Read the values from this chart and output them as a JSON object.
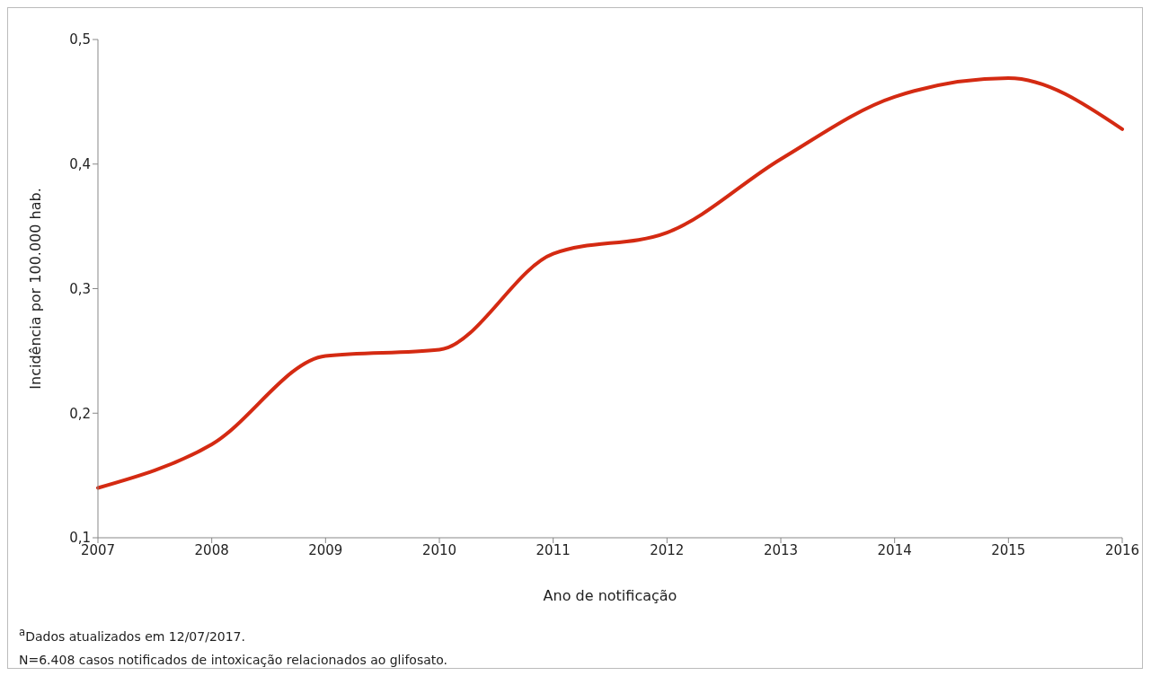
{
  "chart_data": {
    "type": "line",
    "xlabel": "Ano de notificação",
    "ylabel": "Incidência por 100.000 hab.",
    "categories": [
      "2007",
      "2008",
      "2009",
      "2010",
      "2011",
      "2012",
      "2013",
      "2014",
      "2015",
      "2016"
    ],
    "values": [
      0.14,
      0.175,
      0.246,
      0.251,
      0.328,
      0.345,
      0.404,
      0.454,
      0.469,
      0.428
    ],
    "color": "#d42a12",
    "ylim": [
      0.1,
      0.5
    ],
    "yticks": [
      {
        "value": 0.1,
        "label": "0,1"
      },
      {
        "value": 0.2,
        "label": "0,2"
      },
      {
        "value": 0.3,
        "label": "0,3"
      },
      {
        "value": 0.4,
        "label": "0,4"
      },
      {
        "value": 0.5,
        "label": "0,5"
      }
    ],
    "grid": false,
    "legend": false,
    "marker": "none",
    "line_style": "solid",
    "annotations": [
      "$^{a}$Dados atualizados em 12/07/2017.",
      "N=6.408 casos notificados de intoxicação relacionados ao glifosato."
    ]
  }
}
